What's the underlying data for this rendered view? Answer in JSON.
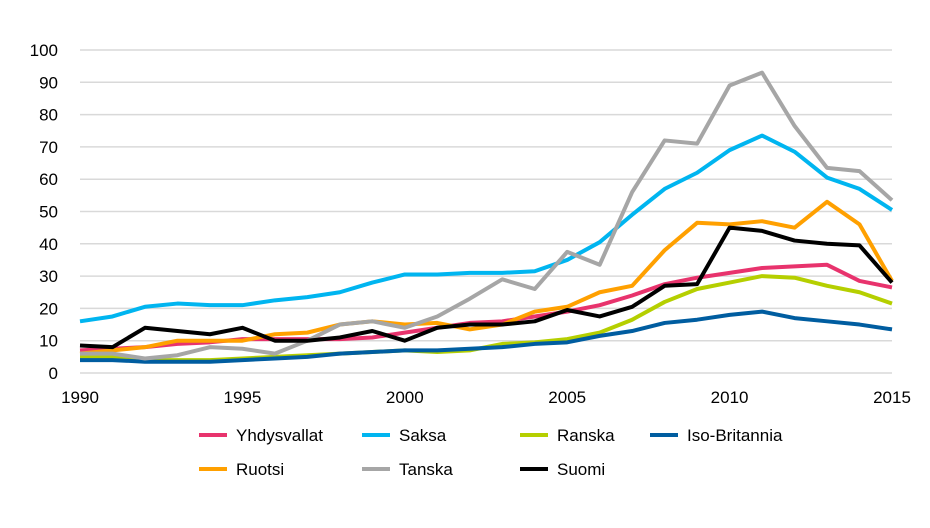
{
  "chart_data": {
    "type": "line",
    "title": "",
    "xlabel": "",
    "ylabel": "",
    "x": [
      1990,
      1991,
      1992,
      1993,
      1994,
      1995,
      1996,
      1997,
      1998,
      1999,
      2000,
      2001,
      2002,
      2003,
      2004,
      2005,
      2006,
      2007,
      2008,
      2009,
      2010,
      2011,
      2012,
      2013,
      2014,
      2015
    ],
    "xlim": [
      1990,
      2015
    ],
    "ylim": [
      0,
      100
    ],
    "x_ticks": [
      "1990",
      "1995",
      "2000",
      "2005",
      "2010",
      "2015"
    ],
    "y_ticks": [
      "0",
      "10",
      "20",
      "30",
      "40",
      "50",
      "60",
      "70",
      "80",
      "90",
      "100"
    ],
    "grid": "horizontal",
    "legend_placement": "bottom",
    "series": [
      {
        "name": "Yhdysvallat",
        "color": "#E8336D",
        "values": [
          7,
          7.5,
          8,
          9,
          9.5,
          10.5,
          10.5,
          10.5,
          10.5,
          11,
          12.5,
          14,
          15.5,
          16,
          17.5,
          19,
          21,
          24,
          27.5,
          29.5,
          31,
          32.5,
          33,
          33.5,
          28.5,
          26.5
        ]
      },
      {
        "name": "Saksa",
        "color": "#00B5F0",
        "values": [
          16,
          17.5,
          20.5,
          21.5,
          21,
          21,
          22.5,
          23.5,
          25,
          28,
          30.5,
          30.5,
          31,
          31,
          31.5,
          35,
          40.5,
          49,
          57,
          62,
          69,
          73.5,
          68.5,
          60.5,
          57,
          50.5
        ]
      },
      {
        "name": "Ranska",
        "color": "#B5CF00",
        "values": [
          5,
          5,
          4,
          4,
          4,
          4.5,
          5,
          5.5,
          6,
          6.5,
          7,
          6.5,
          7,
          9,
          9.5,
          10.5,
          12.5,
          16.5,
          22,
          26,
          28,
          30,
          29.5,
          27,
          25,
          21.5
        ]
      },
      {
        "name": "Iso-Britannia",
        "color": "#005DA0",
        "values": [
          4,
          4,
          3.5,
          3.5,
          3.5,
          4,
          4.5,
          5,
          6,
          6.5,
          7,
          7,
          7.5,
          8,
          9,
          9.5,
          11.5,
          13,
          15.5,
          16.5,
          18,
          19,
          17,
          16,
          15,
          13.5
        ]
      },
      {
        "name": "Ruotsi",
        "color": "#FFA000",
        "values": [
          6,
          7,
          8,
          10,
          10,
          10,
          12,
          12.5,
          15,
          16,
          15,
          15.5,
          13.5,
          15,
          19,
          20.5,
          25,
          27,
          38,
          46.5,
          46,
          47,
          45,
          53,
          46,
          28.5
        ]
      },
      {
        "name": "Tanska",
        "color": "#A6A6A6",
        "values": [
          6,
          6,
          4.5,
          5.5,
          8,
          7.5,
          6,
          10,
          15,
          16,
          14,
          17.5,
          23,
          29,
          26,
          37.5,
          33.5,
          56,
          72,
          71,
          89,
          93,
          76.5,
          63.5,
          62.5,
          53.5
        ]
      },
      {
        "name": "Suomi",
        "color": "#000000",
        "values": [
          8.5,
          8,
          14,
          13,
          12,
          14,
          10,
          10,
          11,
          13,
          10,
          14,
          15,
          15,
          16,
          19.5,
          17.5,
          20.5,
          27,
          27.5,
          45,
          44,
          41,
          40,
          39.5,
          28
        ]
      }
    ]
  }
}
